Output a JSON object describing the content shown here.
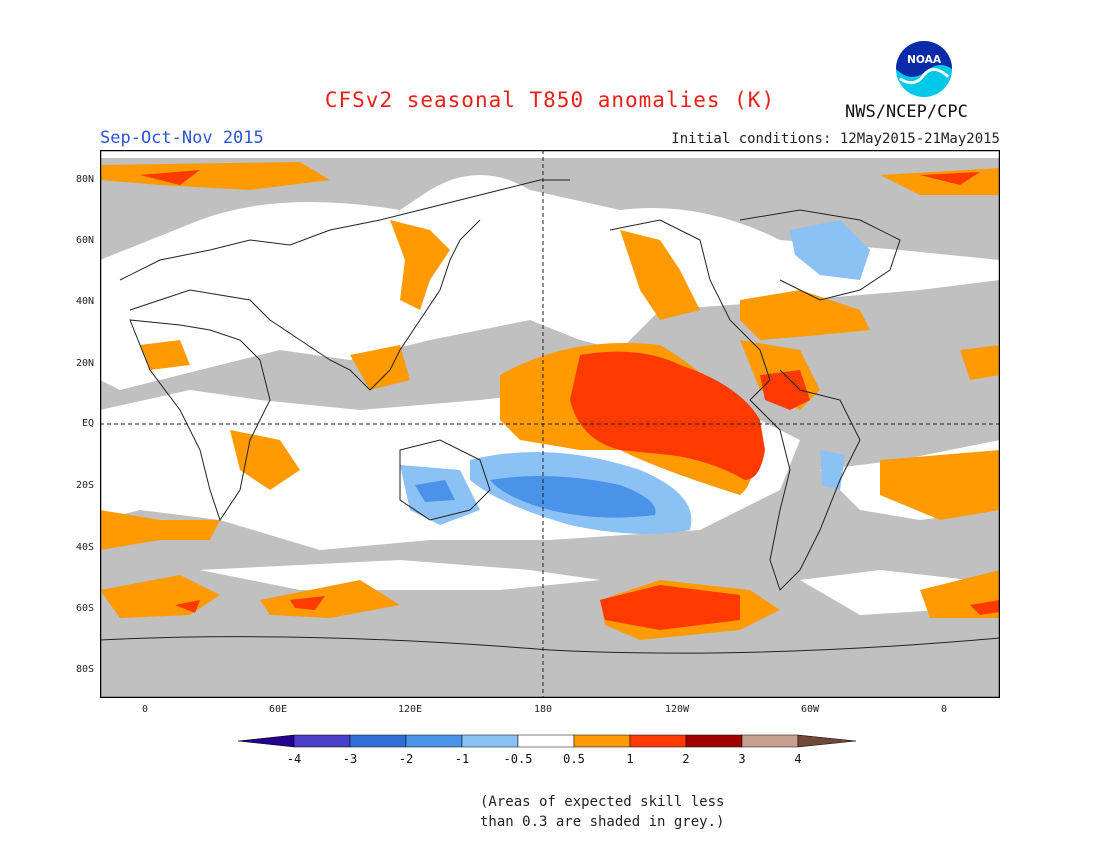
{
  "title": "CFSv2 seasonal T850 anomalies (K)",
  "season": "Sep-Oct-Nov 2015",
  "initial_conditions": "Initial conditions: 12May2015-21May2015",
  "agency": "NWS/NCEP/CPC",
  "logo_text": "NOAA",
  "lat_labels": [
    "80N",
    "60N",
    "40N",
    "20N",
    "EQ",
    "20S",
    "40S",
    "60S",
    "80S"
  ],
  "lon_labels": [
    "0",
    "60E",
    "120E",
    "180",
    "120W",
    "60W",
    "0"
  ],
  "colorbar": {
    "tick_labels": [
      "-4",
      "-3",
      "-2",
      "-1",
      "-0.5",
      "0.5",
      "1",
      "2",
      "3",
      "4"
    ],
    "colors": [
      "#24008f",
      "#4a3fc8",
      "#2f6ed6",
      "#4a93e8",
      "#8cc1f5",
      "#ffffff",
      "#ff9a00",
      "#ff3a00",
      "#a00000",
      "#c8a090",
      "#70483a"
    ]
  },
  "note_lines": [
    "(Areas of expected skill less",
    "than 0.3 are shaded in grey.)"
  ],
  "colors": {
    "title": "#e8201a",
    "season": "#2a55d8",
    "skill_grey": "#c0c0c0",
    "anomaly_orange": "#ff9a00",
    "anomaly_red": "#ff3a00",
    "anomaly_light_blue": "#8cc1f5",
    "anomaly_blue": "#4a93e8"
  }
}
